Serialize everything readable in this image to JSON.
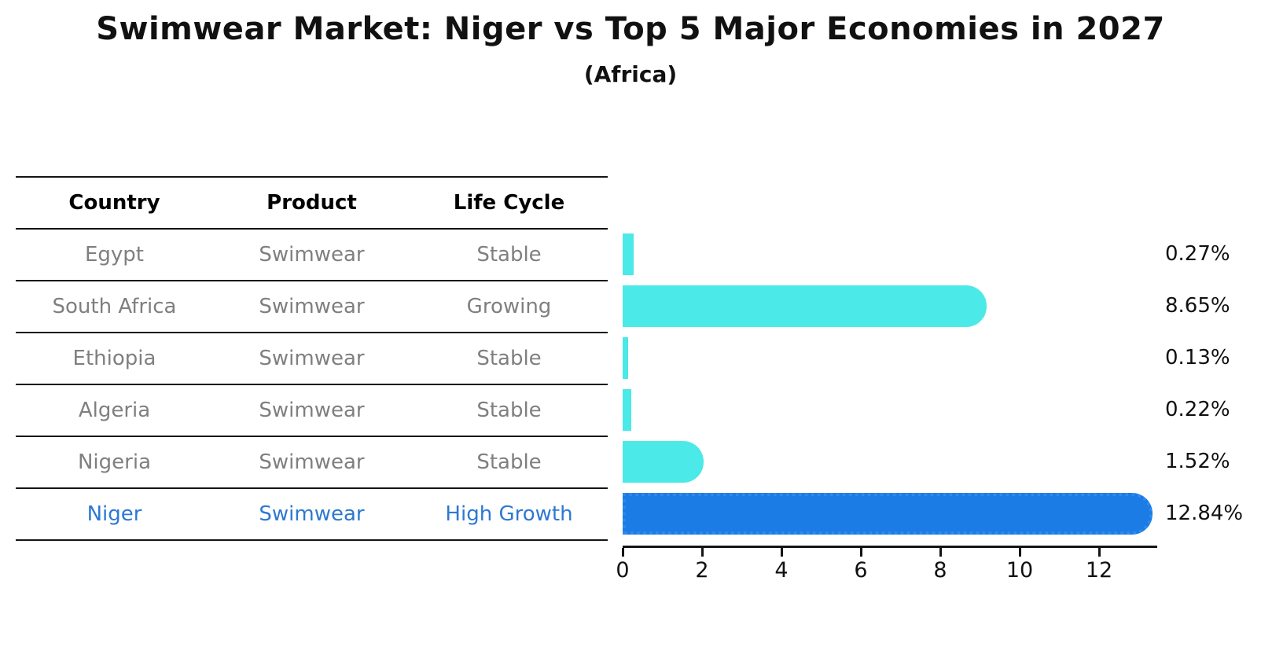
{
  "title": "Swimwear Market: Niger vs Top 5 Major Economies in 2027",
  "subtitle": "(Africa)",
  "table": {
    "headers": [
      "Country",
      "Product",
      "Life Cycle"
    ],
    "rows": [
      {
        "country": "Egypt",
        "product": "Swimwear",
        "life_cycle": "Stable",
        "highlight": false
      },
      {
        "country": "South Africa",
        "product": "Swimwear",
        "life_cycle": "Growing",
        "highlight": false
      },
      {
        "country": "Ethiopia",
        "product": "Swimwear",
        "life_cycle": "Stable",
        "highlight": false
      },
      {
        "country": "Algeria",
        "product": "Swimwear",
        "life_cycle": "Stable",
        "highlight": false
      },
      {
        "country": "Nigeria",
        "product": "Swimwear",
        "life_cycle": "Stable",
        "highlight": false
      },
      {
        "country": "Niger",
        "product": "Swimwear",
        "life_cycle": "High Growth",
        "highlight": true
      }
    ]
  },
  "chart_data": {
    "type": "bar",
    "orientation": "horizontal",
    "title": "Swimwear Market: Niger vs Top 5 Major Economies in 2027",
    "subtitle": "(Africa)",
    "categories": [
      "Egypt",
      "South Africa",
      "Ethiopia",
      "Algeria",
      "Nigeria",
      "Niger"
    ],
    "values": [
      0.27,
      8.65,
      0.13,
      0.22,
      1.52,
      12.84
    ],
    "value_labels": [
      "0.27%",
      "8.65%",
      "0.13%",
      "0.22%",
      "1.52%",
      "12.84%"
    ],
    "xlabel": "",
    "ylabel": "",
    "xlim": [
      0,
      13.5
    ],
    "x_ticks": [
      "0",
      "2",
      "4",
      "6",
      "8",
      "10",
      "12"
    ],
    "grid": false,
    "legend": false,
    "highlight_category": "Niger",
    "bar_style": {
      "rounded_right_cap": true,
      "highlight_border": "dotted"
    }
  },
  "colors": {
    "bar_default": "#4BE9E7",
    "bar_highlight": "#1B7CE6",
    "highlight_text": "#2D78D2",
    "cell_text": "#7f7f7f",
    "header_text": "#000000",
    "line": "#141414"
  }
}
